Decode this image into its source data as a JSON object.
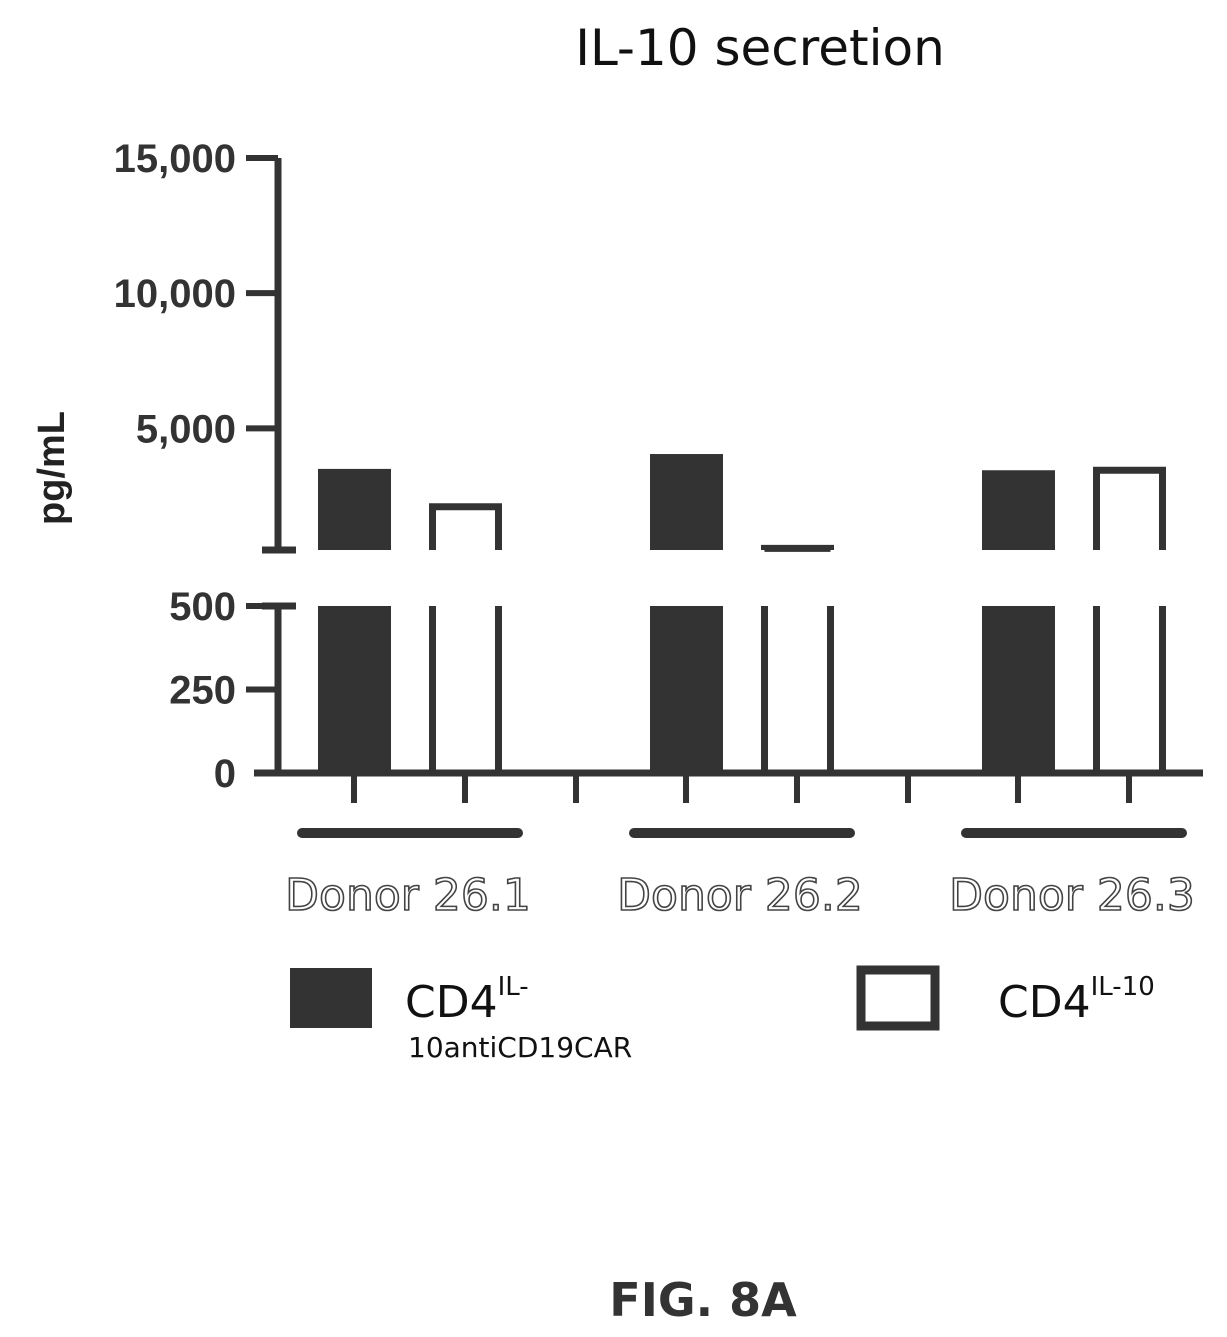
{
  "chart_data": {
    "type": "bar",
    "title": "IL-10 secretion",
    "ylabel": "pg/mL",
    "xlabel": "",
    "y_axis": {
      "broken": true,
      "lower_segment": {
        "range": [
          0,
          500
        ],
        "ticks": [
          0,
          250,
          500
        ],
        "tick_labels": [
          "0",
          "250",
          "500"
        ]
      },
      "upper_segment": {
        "range": [
          500,
          15000
        ],
        "ticks": [
          5000,
          10000,
          15000
        ],
        "tick_labels": [
          "5,000",
          "10,000",
          "15,000"
        ]
      }
    },
    "categories": [
      "Donor 26.1",
      "Donor 26.2",
      "Donor 26.3"
    ],
    "series": [
      {
        "name": "CD4IL-10antiCD19CAR",
        "fill": "solid",
        "color": "#333333",
        "values": [
          3500,
          4050,
          3450
        ]
      },
      {
        "name": "CD4IL-10",
        "fill": "open",
        "color": "#333333",
        "values": [
          2100,
          560,
          3450
        ]
      }
    ],
    "grid": false,
    "legend_position": "bottom"
  },
  "legend": {
    "item1": {
      "main": "CD4",
      "sup": "IL-",
      "sub": "10antiCD19CAR"
    },
    "item2": {
      "main": "CD4",
      "sup": "IL-10"
    }
  },
  "figure_label": "FIG. 8A",
  "colors": {
    "bar": "#333333",
    "axis": "#333333",
    "background": "#ffffff"
  }
}
